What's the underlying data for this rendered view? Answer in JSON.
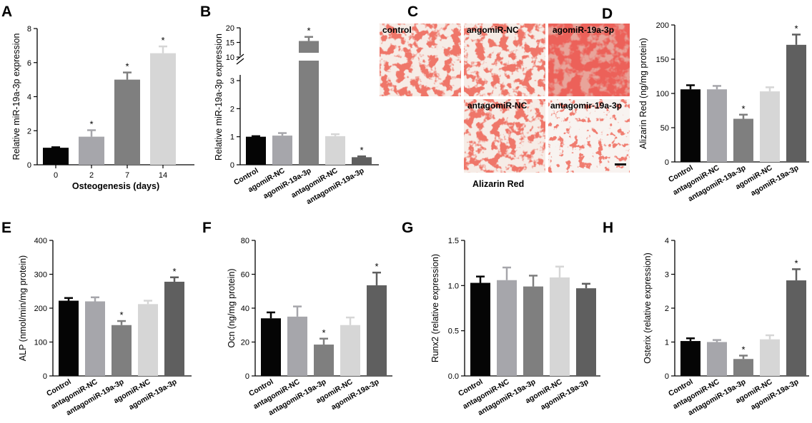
{
  "colors": {
    "black": "#050505",
    "lightgray": "#a6a6ab",
    "midgray": "#7f7f7f",
    "palegray": "#d6d6d6",
    "darkgray": "#5f5f5f",
    "alizarin_red": "#d8352a"
  },
  "panels": {
    "A": "A",
    "B": "B",
    "C": "C",
    "D": "D",
    "E": "E",
    "F": "F",
    "G": "G",
    "H": "H"
  },
  "panel_c": {
    "images": [
      {
        "label": "control",
        "stain": "dense"
      },
      {
        "label": "angomiR-NC",
        "stain": "dense"
      },
      {
        "label": "agomiR-19a-3p",
        "stain": "very-dense"
      },
      {
        "label": "antagomiR-NC",
        "stain": "dense"
      },
      {
        "label": "antagomir-19a-3p",
        "stain": "sparse"
      }
    ],
    "caption": "Alizarin Red"
  },
  "chart_data": [
    {
      "panel": "A",
      "type": "bar",
      "categories": [
        "0",
        "2",
        "7",
        "14"
      ],
      "values": [
        1.0,
        1.65,
        5.0,
        6.55
      ],
      "errors": [
        0.03,
        0.38,
        0.42,
        0.4
      ],
      "significant": [
        false,
        true,
        true,
        true
      ],
      "colors": [
        "#050505",
        "#a6a6ab",
        "#7f7f7f",
        "#d6d6d6"
      ],
      "xlabel": "Osteogenesis (days)",
      "ylabel": "Relative miR-19a-3p expression",
      "ylim": [
        0,
        8
      ],
      "yticks": [
        "0",
        "2",
        "4",
        "6",
        "8"
      ]
    },
    {
      "panel": "B",
      "type": "bar",
      "axis_break": true,
      "categories": [
        "Control",
        "agomiR-NC",
        "agomiR-19a-3p",
        "antagomiR-NC",
        "antagomiR-19a-3p"
      ],
      "values": [
        1.0,
        1.04,
        15.5,
        1.02,
        0.27
      ],
      "errors": [
        0.02,
        0.09,
        1.4,
        0.07,
        0.03
      ],
      "significant": [
        false,
        false,
        true,
        false,
        true
      ],
      "colors": [
        "#050505",
        "#a6a6ab",
        "#7f7f7f",
        "#d6d6d6",
        "#5f5f5f"
      ],
      "ylabel": "Relative miR-19a-3p expression",
      "ylim_lower": [
        0,
        3
      ],
      "ylim_upper": [
        10,
        20
      ],
      "yticks": [
        "0",
        "1",
        "2",
        "3",
        "10",
        "15",
        "20"
      ]
    },
    {
      "panel": "D",
      "type": "bar",
      "categories": [
        "Control",
        "antagomiR-NC",
        "antagomiR-19a-3p",
        "agomiR-NC",
        "agomiR-19a-3p"
      ],
      "values": [
        106,
        106,
        63,
        103,
        171
      ],
      "errors": [
        6,
        5,
        6,
        6,
        15
      ],
      "significant": [
        false,
        false,
        true,
        false,
        true
      ],
      "colors": [
        "#050505",
        "#a6a6ab",
        "#7f7f7f",
        "#d6d6d6",
        "#5f5f5f"
      ],
      "ylabel": "Alizarin Red (ng/mg protein)",
      "ylim": [
        0,
        200
      ],
      "yticks": [
        "0",
        "50",
        "100",
        "150",
        "200"
      ]
    },
    {
      "panel": "E",
      "type": "bar",
      "categories": [
        "Control",
        "antagomiR-NC",
        "antagomiR-19a-3p",
        "agomiR-NC",
        "agomiR-19a-3p"
      ],
      "values": [
        222,
        220,
        150,
        212,
        278
      ],
      "errors": [
        8,
        12,
        12,
        10,
        13
      ],
      "significant": [
        false,
        false,
        true,
        false,
        true
      ],
      "colors": [
        "#050505",
        "#a6a6ab",
        "#7f7f7f",
        "#d6d6d6",
        "#5f5f5f"
      ],
      "ylabel": "ALP (nmol/min/mg protein)",
      "ylim": [
        0,
        400
      ],
      "yticks": [
        "0",
        "100",
        "200",
        "300",
        "400"
      ]
    },
    {
      "panel": "F",
      "type": "bar",
      "categories": [
        "Control",
        "antagomiR-NC",
        "antagomiR-19a-3p",
        "agomiR-NC",
        "agomiR-19a-3p"
      ],
      "values": [
        34,
        35,
        18.5,
        30,
        53.5
      ],
      "errors": [
        3.5,
        6,
        3.5,
        4.5,
        7.5
      ],
      "significant": [
        false,
        false,
        true,
        false,
        true
      ],
      "colors": [
        "#050505",
        "#a6a6ab",
        "#7f7f7f",
        "#d6d6d6",
        "#5f5f5f"
      ],
      "ylabel": "Ocn (ng/mg protein)",
      "ylim": [
        0,
        80
      ],
      "yticks": [
        "0",
        "20",
        "40",
        "60",
        "80"
      ]
    },
    {
      "panel": "G",
      "type": "bar",
      "categories": [
        "Control",
        "antagomiR-NC",
        "antagomiR-19a-3p",
        "agomiR-NC",
        "agomiR-19a-3p"
      ],
      "values": [
        1.03,
        1.06,
        0.99,
        1.09,
        0.97
      ],
      "errors": [
        0.07,
        0.14,
        0.12,
        0.12,
        0.05
      ],
      "significant": [
        false,
        false,
        false,
        false,
        false
      ],
      "colors": [
        "#050505",
        "#a6a6ab",
        "#7f7f7f",
        "#d6d6d6",
        "#5f5f5f"
      ],
      "ylabel": "Runx2 (relative expression)",
      "ylim": [
        0,
        1.5
      ],
      "yticks": [
        "0.0",
        "0.5",
        "1.0",
        "1.5"
      ]
    },
    {
      "panel": "H",
      "type": "bar",
      "categories": [
        "Control",
        "antagomiR-NC",
        "antagomiR-19a-3p",
        "agomiR-NC",
        "agomiR-19a-3p"
      ],
      "values": [
        1.03,
        1.0,
        0.5,
        1.08,
        2.82
      ],
      "errors": [
        0.08,
        0.06,
        0.1,
        0.12,
        0.33
      ],
      "significant": [
        false,
        false,
        true,
        false,
        true
      ],
      "colors": [
        "#050505",
        "#a6a6ab",
        "#7f7f7f",
        "#d6d6d6",
        "#5f5f5f"
      ],
      "ylabel": "Osterix (relative expression)",
      "ylim": [
        0,
        4
      ],
      "yticks": [
        "0",
        "1",
        "2",
        "3",
        "4"
      ]
    }
  ]
}
